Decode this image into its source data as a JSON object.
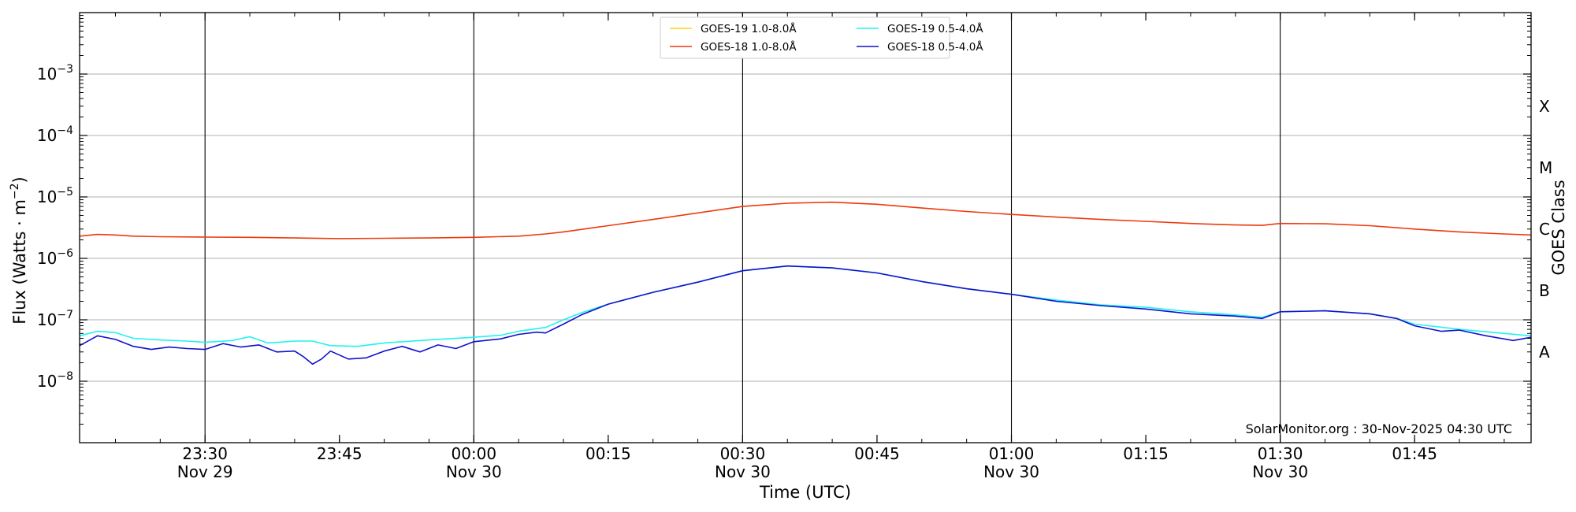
{
  "chart_data": {
    "type": "line",
    "title": "",
    "xlabel": "Time (UTC)",
    "ylabel": "Flux (Watts · m",
    "ylabel_exponent": "−2",
    "ylabel_close": ")",
    "y2label": "GOES Class",
    "yscale": "log",
    "ylim": [
      1e-09,
      0.01
    ],
    "xlim": [
      "2025-11-29 23:16",
      "2025-11-30 01:58"
    ],
    "grid": "horizontal",
    "legend_position": "top-center",
    "y_ticks": [
      {
        "value": 1e-08,
        "base": "10",
        "exp": "−8"
      },
      {
        "value": 1e-07,
        "base": "10",
        "exp": "−7"
      },
      {
        "value": 1e-06,
        "base": "10",
        "exp": "−6"
      },
      {
        "value": 1e-05,
        "base": "10",
        "exp": "−5"
      },
      {
        "value": 0.0001,
        "base": "10",
        "exp": "−4"
      },
      {
        "value": 0.001,
        "base": "10",
        "exp": "−3"
      }
    ],
    "x_ticks": [
      {
        "time": "2025-11-29 23:30",
        "label": "23:30",
        "date": "Nov 29"
      },
      {
        "time": "2025-11-29 23:45",
        "label": "23:45",
        "date": ""
      },
      {
        "time": "2025-11-30 00:00",
        "label": "00:00",
        "date": "Nov 30"
      },
      {
        "time": "2025-11-30 00:15",
        "label": "00:15",
        "date": ""
      },
      {
        "time": "2025-11-30 00:30",
        "label": "00:30",
        "date": "Nov 30"
      },
      {
        "time": "2025-11-30 00:45",
        "label": "00:45",
        "date": ""
      },
      {
        "time": "2025-11-30 01:00",
        "label": "01:00",
        "date": "Nov 30"
      },
      {
        "time": "2025-11-30 01:15",
        "label": "01:15",
        "date": ""
      },
      {
        "time": "2025-11-30 01:30",
        "label": "01:30",
        "date": "Nov 30"
      },
      {
        "time": "2025-11-30 01:45",
        "label": "01:45",
        "date": ""
      }
    ],
    "vlines": [
      "2025-11-29 23:30",
      "2025-11-30 00:00",
      "2025-11-30 00:30",
      "2025-11-30 01:00",
      "2025-11-30 01:30"
    ],
    "goes_classes": [
      {
        "label": "X",
        "value": 0.0003
      },
      {
        "label": "M",
        "value": 3e-05
      },
      {
        "label": "C",
        "value": 3e-06
      },
      {
        "label": "B",
        "value": 3e-07
      },
      {
        "label": "A",
        "value": 3e-08
      }
    ],
    "annotation": "SolarMonitor.org : 30-Nov-2025 04:30 UTC",
    "series": [
      {
        "name": "GOES-19 1.0-8.0Å",
        "color": "#ffd400",
        "points": []
      },
      {
        "name": "GOES-18 1.0-8.0Å",
        "color": "#ee3a0c",
        "points": [
          [
            "2025-11-29 23:16",
            2.3e-06
          ],
          [
            "2025-11-29 23:18",
            2.45e-06
          ],
          [
            "2025-11-29 23:20",
            2.4e-06
          ],
          [
            "2025-11-29 23:22",
            2.3e-06
          ],
          [
            "2025-11-29 23:25",
            2.25e-06
          ],
          [
            "2025-11-29 23:30",
            2.22e-06
          ],
          [
            "2025-11-29 23:35",
            2.2e-06
          ],
          [
            "2025-11-29 23:40",
            2.15e-06
          ],
          [
            "2025-11-29 23:45",
            2.1e-06
          ],
          [
            "2025-11-29 23:50",
            2.12e-06
          ],
          [
            "2025-11-29 23:55",
            2.15e-06
          ],
          [
            "2025-11-30 00:00",
            2.2e-06
          ],
          [
            "2025-11-30 00:05",
            2.3e-06
          ],
          [
            "2025-11-30 00:08",
            2.5e-06
          ],
          [
            "2025-11-30 00:10",
            2.7e-06
          ],
          [
            "2025-11-30 00:15",
            3.4e-06
          ],
          [
            "2025-11-30 00:20",
            4.3e-06
          ],
          [
            "2025-11-30 00:25",
            5.5e-06
          ],
          [
            "2025-11-30 00:30",
            7e-06
          ],
          [
            "2025-11-30 00:35",
            7.9e-06
          ],
          [
            "2025-11-30 00:40",
            8.2e-06
          ],
          [
            "2025-11-30 00:45",
            7.6e-06
          ],
          [
            "2025-11-30 00:50",
            6.6e-06
          ],
          [
            "2025-11-30 00:55",
            5.8e-06
          ],
          [
            "2025-11-30 01:00",
            5.2e-06
          ],
          [
            "2025-11-30 01:05",
            4.7e-06
          ],
          [
            "2025-11-30 01:10",
            4.3e-06
          ],
          [
            "2025-11-30 01:15",
            4e-06
          ],
          [
            "2025-11-30 01:20",
            3.7e-06
          ],
          [
            "2025-11-30 01:25",
            3.5e-06
          ],
          [
            "2025-11-30 01:28",
            3.45e-06
          ],
          [
            "2025-11-30 01:30",
            3.7e-06
          ],
          [
            "2025-11-30 01:35",
            3.65e-06
          ],
          [
            "2025-11-30 01:40",
            3.4e-06
          ],
          [
            "2025-11-30 01:45",
            3e-06
          ],
          [
            "2025-11-30 01:50",
            2.7e-06
          ],
          [
            "2025-11-30 01:55",
            2.5e-06
          ],
          [
            "2025-11-30 01:58",
            2.4e-06
          ]
        ]
      },
      {
        "name": "GOES-19 0.5-4.0Å",
        "color": "#22f2f2",
        "points": [
          [
            "2025-11-29 23:16",
            5.5e-08
          ],
          [
            "2025-11-29 23:18",
            6.5e-08
          ],
          [
            "2025-11-29 23:20",
            6.2e-08
          ],
          [
            "2025-11-29 23:22",
            5e-08
          ],
          [
            "2025-11-29 23:25",
            4.7e-08
          ],
          [
            "2025-11-29 23:28",
            4.5e-08
          ],
          [
            "2025-11-29 23:30",
            4.3e-08
          ],
          [
            "2025-11-29 23:33",
            4.6e-08
          ],
          [
            "2025-11-29 23:35",
            5.3e-08
          ],
          [
            "2025-11-29 23:37",
            4.2e-08
          ],
          [
            "2025-11-29 23:40",
            4.5e-08
          ],
          [
            "2025-11-29 23:42",
            4.5e-08
          ],
          [
            "2025-11-29 23:44",
            3.8e-08
          ],
          [
            "2025-11-29 23:47",
            3.7e-08
          ],
          [
            "2025-11-29 23:50",
            4.2e-08
          ],
          [
            "2025-11-29 23:55",
            4.7e-08
          ],
          [
            "2025-11-30 00:00",
            5.2e-08
          ],
          [
            "2025-11-30 00:03",
            5.6e-08
          ],
          [
            "2025-11-30 00:05",
            6.5e-08
          ],
          [
            "2025-11-30 00:08",
            7.5e-08
          ],
          [
            "2025-11-30 00:10",
            1e-07
          ],
          [
            "2025-11-30 00:12",
            1.3e-07
          ],
          [
            "2025-11-30 00:15",
            1.8e-07
          ],
          [
            "2025-11-30 00:20",
            2.8e-07
          ],
          [
            "2025-11-30 00:25",
            4.1e-07
          ],
          [
            "2025-11-30 00:30",
            6.3e-07
          ],
          [
            "2025-11-30 00:35",
            7.5e-07
          ],
          [
            "2025-11-30 00:40",
            7e-07
          ],
          [
            "2025-11-30 00:45",
            5.8e-07
          ],
          [
            "2025-11-30 00:50",
            4.2e-07
          ],
          [
            "2025-11-30 00:55",
            3.2e-07
          ],
          [
            "2025-11-30 01:00",
            2.6e-07
          ],
          [
            "2025-11-30 01:05",
            2.1e-07
          ],
          [
            "2025-11-30 01:10",
            1.75e-07
          ],
          [
            "2025-11-30 01:15",
            1.6e-07
          ],
          [
            "2025-11-30 01:20",
            1.35e-07
          ],
          [
            "2025-11-30 01:25",
            1.2e-07
          ],
          [
            "2025-11-30 01:28",
            1.1e-07
          ],
          [
            "2025-11-30 01:30",
            1.35e-07
          ],
          [
            "2025-11-30 01:35",
            1.4e-07
          ],
          [
            "2025-11-30 01:40",
            1.25e-07
          ],
          [
            "2025-11-30 01:43",
            1.05e-07
          ],
          [
            "2025-11-30 01:45",
            8.5e-08
          ],
          [
            "2025-11-30 01:50",
            7e-08
          ],
          [
            "2025-11-30 01:55",
            6e-08
          ],
          [
            "2025-11-30 01:58",
            5.5e-08
          ]
        ]
      },
      {
        "name": "GOES-18 0.5-4.0Å",
        "color": "#1111cc",
        "points": [
          [
            "2025-11-29 23:16",
            3.8e-08
          ],
          [
            "2025-11-29 23:18",
            5.5e-08
          ],
          [
            "2025-11-29 23:20",
            4.8e-08
          ],
          [
            "2025-11-29 23:22",
            3.7e-08
          ],
          [
            "2025-11-29 23:24",
            3.3e-08
          ],
          [
            "2025-11-29 23:26",
            3.6e-08
          ],
          [
            "2025-11-29 23:28",
            3.4e-08
          ],
          [
            "2025-11-29 23:30",
            3.3e-08
          ],
          [
            "2025-11-29 23:32",
            4.1e-08
          ],
          [
            "2025-11-29 23:34",
            3.6e-08
          ],
          [
            "2025-11-29 23:36",
            3.9e-08
          ],
          [
            "2025-11-29 23:38",
            3e-08
          ],
          [
            "2025-11-29 23:40",
            3.1e-08
          ],
          [
            "2025-11-29 23:41",
            2.5e-08
          ],
          [
            "2025-11-29 23:42",
            1.9e-08
          ],
          [
            "2025-11-29 23:43",
            2.3e-08
          ],
          [
            "2025-11-29 23:44",
            3.1e-08
          ],
          [
            "2025-11-29 23:46",
            2.3e-08
          ],
          [
            "2025-11-29 23:48",
            2.4e-08
          ],
          [
            "2025-11-29 23:50",
            3.1e-08
          ],
          [
            "2025-11-29 23:52",
            3.7e-08
          ],
          [
            "2025-11-29 23:54",
            3e-08
          ],
          [
            "2025-11-29 23:56",
            3.9e-08
          ],
          [
            "2025-11-29 23:58",
            3.4e-08
          ],
          [
            "2025-11-30 00:00",
            4.4e-08
          ],
          [
            "2025-11-30 00:03",
            4.9e-08
          ],
          [
            "2025-11-30 00:05",
            5.8e-08
          ],
          [
            "2025-11-30 00:07",
            6.3e-08
          ],
          [
            "2025-11-30 00:08",
            6.1e-08
          ],
          [
            "2025-11-30 00:10",
            8.5e-08
          ],
          [
            "2025-11-30 00:12",
            1.2e-07
          ],
          [
            "2025-11-30 00:15",
            1.8e-07
          ],
          [
            "2025-11-30 00:20",
            2.8e-07
          ],
          [
            "2025-11-30 00:25",
            4.1e-07
          ],
          [
            "2025-11-30 00:30",
            6.3e-07
          ],
          [
            "2025-11-30 00:35",
            7.5e-07
          ],
          [
            "2025-11-30 00:40",
            7e-07
          ],
          [
            "2025-11-30 00:45",
            5.8e-07
          ],
          [
            "2025-11-30 00:50",
            4.2e-07
          ],
          [
            "2025-11-30 00:55",
            3.2e-07
          ],
          [
            "2025-11-30 01:00",
            2.6e-07
          ],
          [
            "2025-11-30 01:05",
            2e-07
          ],
          [
            "2025-11-30 01:10",
            1.7e-07
          ],
          [
            "2025-11-30 01:15",
            1.5e-07
          ],
          [
            "2025-11-30 01:20",
            1.25e-07
          ],
          [
            "2025-11-30 01:25",
            1.15e-07
          ],
          [
            "2025-11-30 01:28",
            1.05e-07
          ],
          [
            "2025-11-30 01:30",
            1.35e-07
          ],
          [
            "2025-11-30 01:35",
            1.4e-07
          ],
          [
            "2025-11-30 01:40",
            1.25e-07
          ],
          [
            "2025-11-30 01:43",
            1.05e-07
          ],
          [
            "2025-11-30 01:45",
            8e-08
          ],
          [
            "2025-11-30 01:48",
            6.5e-08
          ],
          [
            "2025-11-30 01:50",
            6.8e-08
          ],
          [
            "2025-11-30 01:53",
            5.5e-08
          ],
          [
            "2025-11-30 01:56",
            4.6e-08
          ],
          [
            "2025-11-30 01:58",
            5.2e-08
          ]
        ]
      }
    ]
  }
}
